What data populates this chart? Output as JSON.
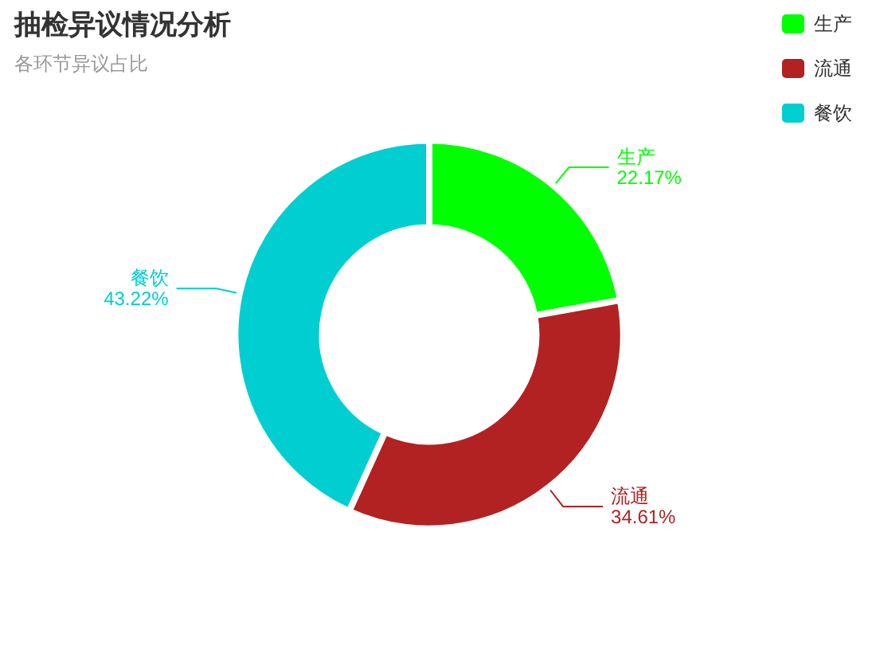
{
  "chart_data": {
    "type": "donut",
    "title": "抽检异议情况分析",
    "subtitle": "各环节异议占比",
    "categories": [
      "生产",
      "流通",
      "餐饮"
    ],
    "values": [
      22.17,
      34.61,
      43.22
    ],
    "value_labels": [
      "22.17%",
      "34.61%",
      "43.22%"
    ],
    "colors": [
      "#00ff00",
      "#b22222",
      "#00ced1"
    ],
    "legend": "top right"
  }
}
